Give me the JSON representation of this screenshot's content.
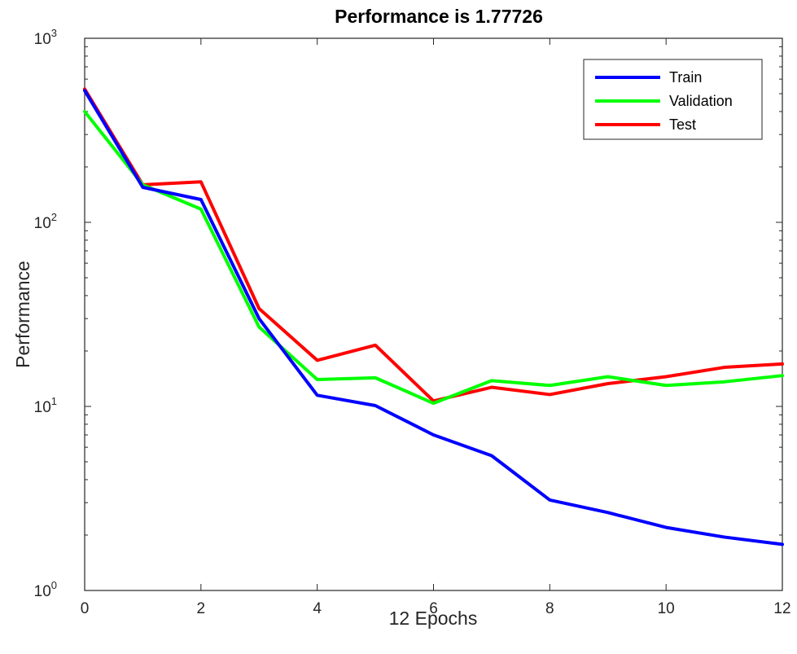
{
  "chart_data": {
    "type": "line",
    "title": "Performance is 1.77726",
    "xlabel": "12 Epochs",
    "ylabel": "Performance",
    "xlim": [
      0,
      12
    ],
    "ylim": [
      1,
      1000
    ],
    "y_scale": "log",
    "grid": false,
    "legend_position": "top-right",
    "x_ticks": [
      0,
      2,
      4,
      6,
      8,
      10,
      12
    ],
    "y_ticks": [
      {
        "value": 1,
        "base": "10",
        "exponent": "0"
      },
      {
        "value": 10,
        "base": "10",
        "exponent": "1"
      },
      {
        "value": 100,
        "base": "10",
        "exponent": "2"
      },
      {
        "value": 1000,
        "base": "10",
        "exponent": "3"
      }
    ],
    "x": [
      0,
      1,
      2,
      3,
      4,
      5,
      6,
      7,
      8,
      9,
      10,
      11,
      12
    ],
    "series": [
      {
        "name": "Train",
        "color": "#0000ff",
        "values": [
          520,
          155,
          133,
          30,
          11.5,
          10.1,
          7.0,
          5.4,
          3.1,
          2.65,
          2.2,
          1.95,
          1.78
        ]
      },
      {
        "name": "Validation",
        "color": "#00ff00",
        "values": [
          400,
          160,
          118,
          27,
          14.0,
          14.3,
          10.4,
          13.8,
          13.0,
          14.5,
          13.0,
          13.6,
          14.7
        ]
      },
      {
        "name": "Test",
        "color": "#ff0000",
        "values": [
          530,
          160,
          166,
          34,
          17.8,
          21.5,
          10.7,
          12.7,
          11.6,
          13.3,
          14.5,
          16.3,
          17.0
        ]
      }
    ]
  }
}
